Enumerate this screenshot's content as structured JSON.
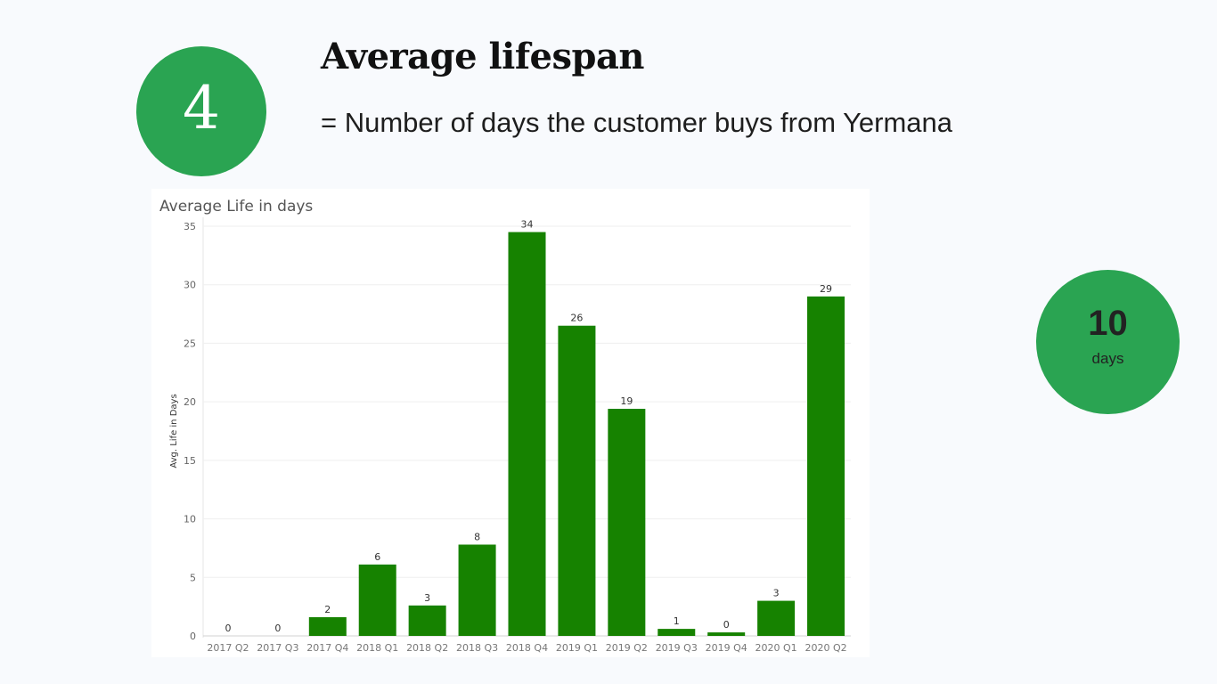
{
  "step": {
    "number": "4"
  },
  "heading": {
    "title": "Average lifespan",
    "subtitle": "= Number of days the customer buys from Yermana"
  },
  "stat": {
    "value": "10",
    "unit": "days"
  },
  "colors": {
    "accent": "#2aa452",
    "bar": "#168200",
    "background": "#f8fafd"
  },
  "chart_data": {
    "type": "bar",
    "title": "Average Life in days",
    "xlabel": "",
    "ylabel": "Avg. Life in Days",
    "categories": [
      "2017 Q2",
      "2017 Q3",
      "2017 Q4",
      "2018 Q1",
      "2018 Q2",
      "2018 Q3",
      "2018 Q4",
      "2019 Q1",
      "2019 Q2",
      "2019 Q3",
      "2019 Q4",
      "2020 Q1",
      "2020 Q2"
    ],
    "values": [
      0,
      0,
      1.6,
      6.1,
      2.6,
      7.8,
      34.5,
      26.5,
      19.4,
      0.6,
      0.3,
      3.0,
      29.0
    ],
    "data_labels": [
      "0",
      "0",
      "2",
      "6",
      "3",
      "8",
      "34",
      "26",
      "19",
      "1",
      "0",
      "3",
      "29"
    ],
    "ylim": [
      0,
      35
    ],
    "yticks": [
      0,
      5,
      10,
      15,
      20,
      25,
      30,
      35
    ],
    "grid": true,
    "legend": "none"
  }
}
